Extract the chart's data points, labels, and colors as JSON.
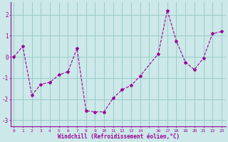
{
  "x": [
    0,
    1,
    2,
    3,
    4,
    5,
    6,
    7,
    8,
    9,
    10,
    11,
    12,
    13,
    14,
    16,
    17,
    18,
    19,
    20,
    21,
    22,
    23
  ],
  "y": [
    0.0,
    0.5,
    -1.8,
    -1.3,
    -1.2,
    -0.85,
    -0.7,
    0.4,
    -2.55,
    -2.6,
    -2.6,
    -1.95,
    -1.55,
    -1.35,
    -0.9,
    0.15,
    2.2,
    0.75,
    -0.25,
    -0.6,
    -0.05,
    1.1,
    1.2
  ],
  "line_color": "#990099",
  "marker": "*",
  "marker_size": 3,
  "bg_color": "#cce8e8",
  "grid_color": "#99cccc",
  "xlabel": "Windchill (Refroidissement éolien,°C)",
  "xlabel_color": "#990099",
  "tick_color": "#990099",
  "yticks": [
    -3,
    -2,
    -1,
    0,
    1,
    2
  ],
  "xtick_labels": [
    "0",
    "1",
    "2",
    "3",
    "4",
    "5",
    "6",
    "7",
    "8",
    "9",
    "10",
    "11",
    "12",
    "13",
    "14",
    "",
    "16",
    "17",
    "18",
    "19",
    "20",
    "21",
    "22",
    "23"
  ],
  "xtick_positions": [
    0,
    1,
    2,
    3,
    4,
    5,
    6,
    7,
    8,
    9,
    10,
    11,
    12,
    13,
    14,
    15,
    16,
    17,
    18,
    19,
    20,
    21,
    22,
    23
  ],
  "xlim": [
    -0.3,
    23.5
  ],
  "ylim": [
    -3.3,
    2.6
  ],
  "spine_color": "#990099"
}
